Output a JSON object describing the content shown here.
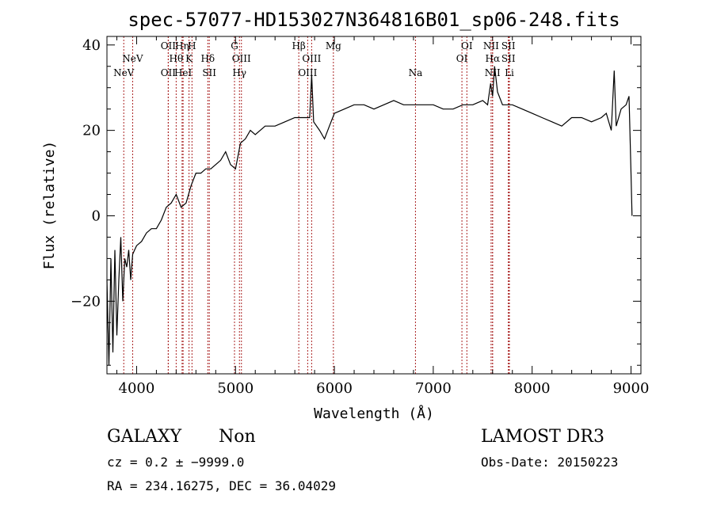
{
  "chart_data": {
    "type": "line",
    "title": "spec-57077-HD153027N364816B01_sp06-248.fits",
    "xlabel": "Wavelength (Å)",
    "ylabel": "Flux (relative)",
    "xlim": [
      3700,
      9100
    ],
    "ylim": [
      -37,
      42
    ],
    "xticks": [
      4000,
      5000,
      6000,
      7000,
      8000,
      9000
    ],
    "yticks": [
      -20,
      0,
      20,
      40
    ],
    "grid": false,
    "line_color": "#000000",
    "marker_color": "#aa2222",
    "spectrum": {
      "x": [
        3700,
        3720,
        3740,
        3760,
        3780,
        3800,
        3820,
        3840,
        3860,
        3880,
        3900,
        3920,
        3940,
        3960,
        3980,
        4000,
        4050,
        4100,
        4150,
        4200,
        4250,
        4300,
        4350,
        4400,
        4450,
        4500,
        4550,
        4600,
        4650,
        4700,
        4750,
        4800,
        4850,
        4900,
        4950,
        5000,
        5050,
        5100,
        5150,
        5200,
        5300,
        5400,
        5500,
        5600,
        5700,
        5750,
        5770,
        5790,
        5850,
        5900,
        5950,
        6000,
        6100,
        6200,
        6300,
        6400,
        6500,
        6600,
        6700,
        6800,
        6900,
        7000,
        7100,
        7200,
        7300,
        7400,
        7500,
        7550,
        7580,
        7600,
        7620,
        7650,
        7700,
        7800,
        7900,
        8000,
        8100,
        8200,
        8300,
        8400,
        8500,
        8600,
        8700,
        8750,
        8800,
        8830,
        8850,
        8900,
        8950,
        8980,
        9000,
        9010
      ],
      "y": [
        -15,
        -35,
        -10,
        -32,
        -8,
        -28,
        -15,
        -5,
        -20,
        -10,
        -12,
        -8,
        -15,
        -9,
        -8,
        -7,
        -6,
        -4,
        -3,
        -3,
        -1,
        2,
        3,
        5,
        2,
        3,
        7,
        10,
        10,
        11,
        11,
        12,
        13,
        15,
        12,
        11,
        17,
        18,
        20,
        19,
        21,
        21,
        22,
        23,
        23,
        23,
        33,
        22,
        20,
        18,
        21,
        24,
        25,
        26,
        26,
        25,
        26,
        27,
        26,
        26,
        26,
        26,
        25,
        25,
        26,
        26,
        27,
        26,
        31,
        28,
        35,
        29,
        26,
        26,
        25,
        24,
        23,
        22,
        21,
        23,
        23,
        22,
        23,
        24,
        20,
        34,
        21,
        25,
        26,
        28,
        10,
        0
      ]
    },
    "lines": [
      {
        "label": "NeV",
        "x": 3870,
        "row": 3
      },
      {
        "label": "NeV",
        "x": 3960,
        "row": 2
      },
      {
        "label": "OII",
        "x": 4320,
        "row": 1
      },
      {
        "label": "OII",
        "x": 4320,
        "row": 3
      },
      {
        "label": "Hθ",
        "x": 4400,
        "row": 2
      },
      {
        "label": "Hη",
        "x": 4460,
        "row": 1
      },
      {
        "label": "HeI",
        "x": 4470,
        "row": 3
      },
      {
        "label": "H",
        "x": 4560,
        "row": 1
      },
      {
        "label": "K",
        "x": 4530,
        "row": 2
      },
      {
        "label": "Hδ",
        "x": 4720,
        "row": 2
      },
      {
        "label": "SII",
        "x": 4735,
        "row": 3
      },
      {
        "label": "G",
        "x": 4990,
        "row": 1
      },
      {
        "label": "OIII",
        "x": 5060,
        "row": 2
      },
      {
        "label": "Hγ",
        "x": 5040,
        "row": 3
      },
      {
        "label": "Hβ",
        "x": 5640,
        "row": 1
      },
      {
        "label": "OIII",
        "x": 5770,
        "row": 2
      },
      {
        "label": "OIII",
        "x": 5730,
        "row": 3
      },
      {
        "label": "Mg",
        "x": 5990,
        "row": 1
      },
      {
        "label": "Na",
        "x": 6820,
        "row": 3
      },
      {
        "label": "OI",
        "x": 7340,
        "row": 1
      },
      {
        "label": "OI",
        "x": 7290,
        "row": 2
      },
      {
        "label": "NII",
        "x": 7585,
        "row": 1
      },
      {
        "label": "Hα",
        "x": 7600,
        "row": 2
      },
      {
        "label": "NII",
        "x": 7600,
        "row": 3
      },
      {
        "label": "SII",
        "x": 7760,
        "row": 1
      },
      {
        "label": "SII",
        "x": 7760,
        "row": 2
      },
      {
        "label": "Li",
        "x": 7770,
        "row": 3
      }
    ]
  },
  "footer": {
    "class_label": "GALAXY",
    "subclass": "Non",
    "survey": "LAMOST DR3",
    "redshift": "cz = 0.2 ± −9999.0",
    "obs_date": "Obs-Date: 20150223",
    "coords": "RA = 234.16275, DEC =  36.04029"
  }
}
